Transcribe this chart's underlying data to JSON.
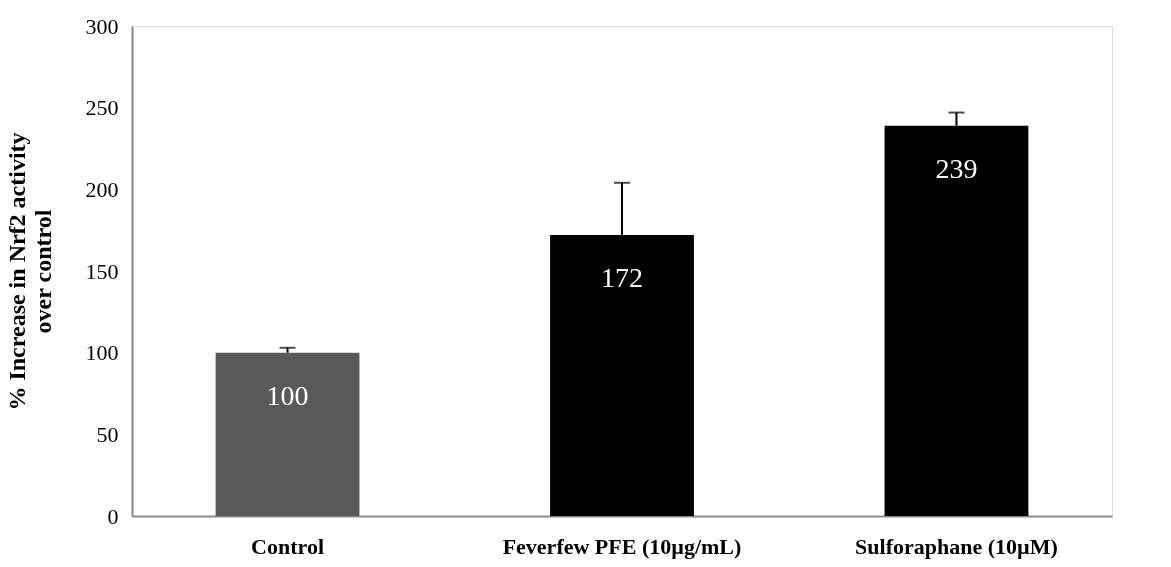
{
  "chart_data": {
    "type": "bar",
    "ylabel": "% Increase in Nrf2 activity\nover control",
    "categories": [
      "Control",
      "Feverfew PFE (10µg/mL)",
      "Sulforaphane (10µM)"
    ],
    "values": [
      100,
      172,
      239
    ],
    "colors": [
      "#595959",
      "#000000",
      "#000000"
    ],
    "errors": [
      [
        100,
        103
      ],
      [
        172,
        204
      ],
      [
        239,
        247
      ]
    ],
    "ylim": [
      0,
      300
    ],
    "yticks": [
      0,
      50,
      100,
      150,
      200,
      250,
      300
    ],
    "data_labels": true,
    "grid": false
  }
}
